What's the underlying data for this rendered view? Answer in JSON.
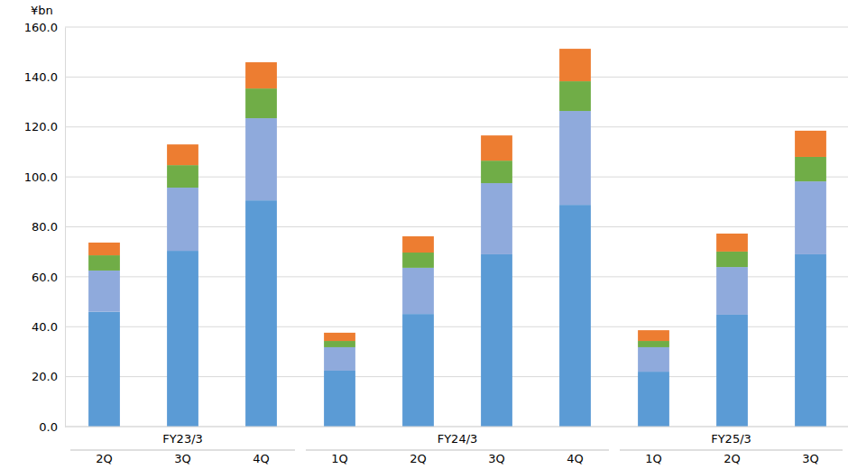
{
  "chart_data": {
    "type": "bar",
    "stacked": true,
    "grid": true,
    "y_label": "¥bn",
    "categories": [
      "2Q",
      "3Q",
      "4Q",
      "1Q",
      "2Q",
      "3Q",
      "4Q",
      "1Q",
      "2Q",
      "3Q"
    ],
    "category_groups": [
      {
        "label": "FY23/3",
        "count": 3
      },
      {
        "label": "FY24/3",
        "count": 4
      },
      {
        "label": "FY25/3",
        "count": 3
      }
    ],
    "series": [
      {
        "color": "#5b9bd5",
        "values": [
          46.0,
          70.4,
          90.6,
          22.4,
          45.1,
          69.0,
          88.8,
          22.0,
          44.8,
          69.0
        ]
      },
      {
        "color": "#8faadc",
        "values": [
          16.5,
          25.3,
          32.9,
          9.4,
          18.5,
          28.5,
          37.6,
          9.8,
          19.1,
          29.2
        ]
      },
      {
        "color": "#70ad47",
        "values": [
          6.1,
          9.0,
          11.9,
          2.5,
          6.1,
          9.0,
          11.9,
          2.5,
          6.2,
          9.8
        ]
      },
      {
        "color": "#ed7d31",
        "values": [
          5.1,
          8.3,
          10.5,
          3.3,
          6.5,
          10.1,
          13.0,
          4.3,
          7.2,
          10.5
        ]
      }
    ],
    "ylim": [
      0,
      160
    ],
    "yticks": [
      {
        "value": 0,
        "label": "0.0"
      },
      {
        "value": 20,
        "label": "20.0"
      },
      {
        "value": 40,
        "label": "40.0"
      },
      {
        "value": 60,
        "label": "60.0"
      },
      {
        "value": 80,
        "label": "80.0"
      },
      {
        "value": 100,
        "label": "100.0"
      },
      {
        "value": 120,
        "label": "120.0"
      },
      {
        "value": 140,
        "label": "140.0"
      },
      {
        "value": 160,
        "label": "160.0"
      }
    ]
  }
}
